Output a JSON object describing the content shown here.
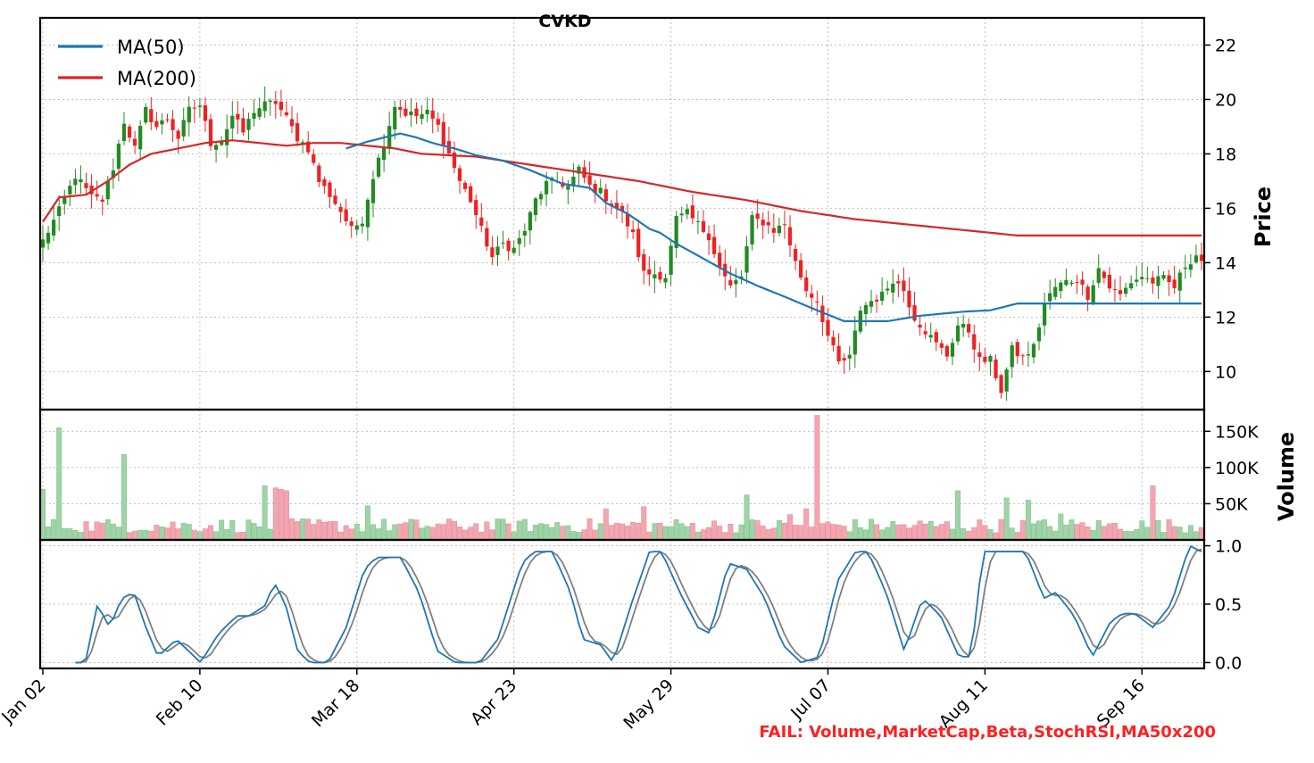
{
  "chart_data": {
    "type": "candlestick",
    "title": "CVKD",
    "colors": {
      "up": "#228b22",
      "down": "#ee2222",
      "ma50": "#1f77b4",
      "ma200": "#d62728",
      "stoch_k": "#1f77b4",
      "stoch_d": "#808080",
      "vol_up": "#9fd4a6",
      "vol_down": "#f4a6b0",
      "fail": "#ff2020"
    },
    "price_panel": {
      "ylabel": "Price",
      "ylim": [
        8.6,
        23.0
      ],
      "yticks": [
        10,
        12,
        14,
        16,
        18,
        20,
        22
      ],
      "legend": [
        {
          "label": "MA(50)",
          "color": "#1f77b4"
        },
        {
          "label": "MA(200)",
          "color": "#d62728"
        }
      ],
      "legend_position": "top-left",
      "close_keypoints": [
        [
          0,
          14.8
        ],
        [
          3,
          15.9
        ],
        [
          6,
          17.2
        ],
        [
          9,
          16.4
        ],
        [
          11,
          16.3
        ],
        [
          13,
          17.5
        ],
        [
          15,
          19.2
        ],
        [
          17,
          18.2
        ],
        [
          19,
          19.6
        ],
        [
          21,
          19.0
        ],
        [
          23,
          19.3
        ],
        [
          25,
          18.6
        ],
        [
          27,
          19.6
        ],
        [
          29,
          19.8
        ],
        [
          31,
          18.4
        ],
        [
          33,
          18.5
        ],
        [
          35,
          19.4
        ],
        [
          37,
          18.8
        ],
        [
          39,
          19.6
        ],
        [
          41,
          19.8
        ],
        [
          43,
          19.9
        ],
        [
          45,
          19.3
        ],
        [
          47,
          18.6
        ],
        [
          49,
          18.2
        ],
        [
          51,
          17.0
        ],
        [
          53,
          16.5
        ],
        [
          55,
          15.9
        ],
        [
          57,
          15.2
        ],
        [
          59,
          15.6
        ],
        [
          61,
          17.2
        ],
        [
          63,
          18.4
        ],
        [
          65,
          19.8
        ],
        [
          67,
          19.5
        ],
        [
          69,
          19.4
        ],
        [
          71,
          19.5
        ],
        [
          73,
          19.0
        ],
        [
          75,
          18.0
        ],
        [
          77,
          17.0
        ],
        [
          79,
          16.3
        ],
        [
          81,
          15.2
        ],
        [
          83,
          14.2
        ],
        [
          85,
          14.7
        ],
        [
          87,
          14.5
        ],
        [
          89,
          15.2
        ],
        [
          91,
          16.3
        ],
        [
          93,
          16.9
        ],
        [
          95,
          17.0
        ],
        [
          97,
          16.8
        ],
        [
          99,
          17.4
        ],
        [
          101,
          16.8
        ],
        [
          103,
          16.6
        ],
        [
          105,
          16.2
        ],
        [
          107,
          15.8
        ],
        [
          109,
          15.0
        ],
        [
          111,
          13.6
        ],
        [
          113,
          13.6
        ],
        [
          115,
          13.5
        ],
        [
          117,
          15.6
        ],
        [
          119,
          15.8
        ],
        [
          121,
          15.4
        ],
        [
          123,
          15.0
        ],
        [
          125,
          13.8
        ],
        [
          127,
          13.1
        ],
        [
          129,
          13.5
        ],
        [
          131,
          15.6
        ],
        [
          133,
          15.5
        ],
        [
          135,
          15.2
        ],
        [
          137,
          15.4
        ],
        [
          139,
          14.0
        ],
        [
          141,
          13.0
        ],
        [
          143,
          12.6
        ],
        [
          145,
          11.3
        ],
        [
          147,
          10.3
        ],
        [
          149,
          10.5
        ],
        [
          151,
          12.3
        ],
        [
          153,
          12.6
        ],
        [
          155,
          12.8
        ],
        [
          157,
          13.4
        ],
        [
          159,
          13.0
        ],
        [
          161,
          12.0
        ],
        [
          163,
          11.5
        ],
        [
          165,
          11.0
        ],
        [
          167,
          10.6
        ],
        [
          169,
          11.7
        ],
        [
          171,
          11.5
        ],
        [
          173,
          10.4
        ],
        [
          175,
          10.4
        ],
        [
          177,
          9.3
        ],
        [
          179,
          10.8
        ],
        [
          181,
          10.5
        ],
        [
          183,
          10.9
        ],
        [
          185,
          12.5
        ],
        [
          187,
          13.1
        ],
        [
          189,
          13.3
        ],
        [
          191,
          13.4
        ],
        [
          193,
          12.8
        ],
        [
          195,
          13.8
        ],
        [
          197,
          13.1
        ],
        [
          199,
          12.8
        ],
        [
          201,
          13.3
        ],
        [
          203,
          13.5
        ],
        [
          205,
          13.3
        ],
        [
          207,
          13.4
        ],
        [
          209,
          13.1
        ],
        [
          211,
          13.9
        ],
        [
          213,
          14.3
        ],
        [
          214,
          14.1
        ]
      ],
      "ma50_keypoints": [
        [
          56,
          18.2
        ],
        [
          60,
          18.45
        ],
        [
          64,
          18.65
        ],
        [
          66,
          18.75
        ],
        [
          69,
          18.6
        ],
        [
          72,
          18.4
        ],
        [
          76,
          18.2
        ],
        [
          80,
          17.95
        ],
        [
          85,
          17.75
        ],
        [
          90,
          17.4
        ],
        [
          96,
          16.9
        ],
        [
          101,
          16.75
        ],
        [
          104,
          16.2
        ],
        [
          108,
          15.8
        ],
        [
          112,
          15.25
        ],
        [
          114,
          15.1
        ],
        [
          117,
          14.7
        ],
        [
          122,
          14.15
        ],
        [
          127,
          13.6
        ],
        [
          132,
          13.15
        ],
        [
          137,
          12.75
        ],
        [
          143,
          12.25
        ],
        [
          148,
          11.85
        ],
        [
          156,
          11.85
        ],
        [
          162,
          12.05
        ],
        [
          170,
          12.2
        ],
        [
          175,
          12.25
        ],
        [
          180,
          12.5
        ]
      ],
      "ma200_keypoints": [
        [
          0,
          15.5
        ],
        [
          3,
          16.4
        ],
        [
          8,
          16.5
        ],
        [
          12,
          17.0
        ],
        [
          16,
          17.6
        ],
        [
          20,
          18.0
        ],
        [
          25,
          18.2
        ],
        [
          30,
          18.4
        ],
        [
          35,
          18.5
        ],
        [
          40,
          18.4
        ],
        [
          45,
          18.3
        ],
        [
          50,
          18.4
        ],
        [
          55,
          18.4
        ],
        [
          60,
          18.3
        ],
        [
          65,
          18.2
        ],
        [
          70,
          18.0
        ],
        [
          80,
          17.9
        ],
        [
          90,
          17.6
        ],
        [
          100,
          17.3
        ],
        [
          110,
          17.0
        ],
        [
          120,
          16.6
        ],
        [
          130,
          16.3
        ],
        [
          140,
          15.9
        ],
        [
          150,
          15.6
        ],
        [
          160,
          15.4
        ],
        [
          170,
          15.2
        ],
        [
          180,
          15.0
        ]
      ]
    },
    "volume_panel": {
      "ylabel": "Volume",
      "ylim": [
        0,
        180000
      ],
      "yticks": [
        50000,
        100000,
        150000
      ],
      "ytick_labels": [
        "50K",
        "100K",
        "150K"
      ],
      "baseline": 22000,
      "spikes": [
        [
          0,
          70000
        ],
        [
          3,
          155000
        ],
        [
          15,
          118000
        ],
        [
          41,
          75000
        ],
        [
          43,
          72000
        ],
        [
          44,
          70000
        ],
        [
          45,
          68000
        ],
        [
          60,
          47000
        ],
        [
          95,
          24000
        ],
        [
          104,
          43000
        ],
        [
          111,
          46000
        ],
        [
          130,
          62000
        ],
        [
          138,
          35000
        ],
        [
          141,
          43000
        ],
        [
          143,
          172000
        ],
        [
          169,
          68000
        ],
        [
          178,
          58000
        ],
        [
          182,
          55000
        ],
        [
          188,
          36000
        ],
        [
          205,
          75000
        ]
      ]
    },
    "stoch_panel": {
      "ylim": [
        -0.05,
        1.05
      ],
      "yticks": [
        0.0,
        0.5,
        1.0
      ],
      "ytick_labels": [
        "0.0",
        "0.5",
        "1.0"
      ],
      "k_keypoints": [
        [
          5,
          0.0
        ],
        [
          7,
          0.0
        ],
        [
          9,
          0.5
        ],
        [
          11,
          0.3
        ],
        [
          13,
          0.55
        ],
        [
          15,
          0.6
        ],
        [
          17,
          0.3
        ],
        [
          19,
          0.05
        ],
        [
          22,
          0.2
        ],
        [
          24,
          0.1
        ],
        [
          26,
          0.0
        ],
        [
          29,
          0.25
        ],
        [
          32,
          0.4
        ],
        [
          34,
          0.4
        ],
        [
          37,
          0.5
        ],
        [
          38,
          0.7
        ],
        [
          40,
          0.5
        ],
        [
          42,
          0.1
        ],
        [
          44,
          0.0
        ],
        [
          47,
          0.0
        ],
        [
          50,
          0.3
        ],
        [
          53,
          0.8
        ],
        [
          55,
          0.9
        ],
        [
          59,
          0.9
        ],
        [
          62,
          0.6
        ],
        [
          65,
          0.1
        ],
        [
          68,
          0.0
        ],
        [
          72,
          0.0
        ],
        [
          75,
          0.2
        ],
        [
          79,
          0.85
        ],
        [
          81,
          0.95
        ],
        [
          84,
          0.95
        ],
        [
          87,
          0.6
        ],
        [
          89,
          0.2
        ],
        [
          92,
          0.15
        ],
        [
          94,
          0.0
        ],
        [
          97,
          0.5
        ],
        [
          100,
          0.95
        ],
        [
          102,
          0.95
        ],
        [
          105,
          0.6
        ],
        [
          108,
          0.3
        ],
        [
          110,
          0.25
        ],
        [
          113,
          0.85
        ],
        [
          116,
          0.8
        ],
        [
          119,
          0.55
        ],
        [
          122,
          0.15
        ],
        [
          125,
          0.0
        ],
        [
          128,
          0.05
        ],
        [
          131,
          0.7
        ],
        [
          134,
          0.95
        ],
        [
          136,
          0.95
        ],
        [
          139,
          0.6
        ],
        [
          142,
          0.1
        ],
        [
          145,
          0.55
        ],
        [
          148,
          0.4
        ],
        [
          151,
          0.05
        ],
        [
          153,
          0.05
        ],
        [
          155,
          0.95
        ],
        [
          158,
          0.95
        ],
        [
          162,
          0.95
        ],
        [
          165,
          0.55
        ],
        [
          167,
          0.6
        ],
        [
          170,
          0.4
        ],
        [
          173,
          0.05
        ],
        [
          176,
          0.35
        ],
        [
          178,
          0.42
        ],
        [
          180,
          0.42
        ],
        [
          183,
          0.3
        ],
        [
          186,
          0.5
        ],
        [
          189,
          1.0
        ],
        [
          191,
          0.95
        ]
      ],
      "d_lag": 2
    },
    "x_axis": {
      "n_days": 215,
      "tick_labels": [
        "Jan 02",
        "Feb 10",
        "Mar 18",
        "Apr 23",
        "May 29",
        "Jul 07",
        "Aug 11",
        "Sep 16"
      ],
      "tick_index": [
        0,
        29,
        58,
        87,
        116,
        145,
        174,
        203
      ]
    },
    "status_text": "FAIL: Volume,MarketCap,Beta,StochRSI,MA50x200"
  }
}
